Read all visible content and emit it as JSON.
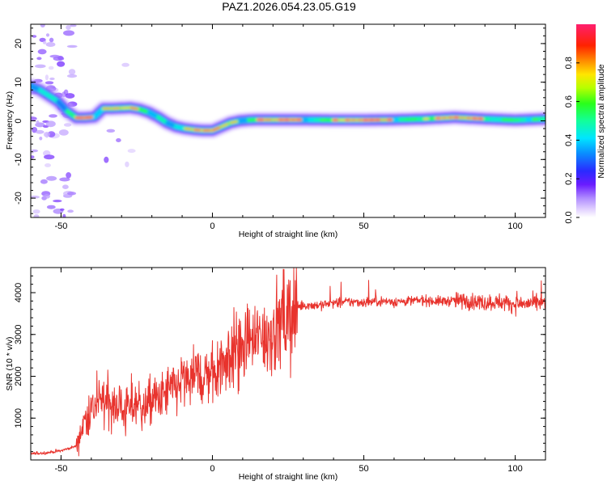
{
  "title": "PAZ1.2026.054.23.05.G19",
  "chart_data": [
    {
      "type": "heatmap",
      "name": "spectrogram",
      "xlabel": "Height of straight line (km)",
      "ylabel": "Frequency (Hz)",
      "xlim": [
        -60,
        110
      ],
      "ylim": [
        -25,
        25
      ],
      "xticks": [
        -50,
        0,
        50,
        100
      ],
      "xtick_labels": [
        "-50",
        "0",
        "50",
        "100"
      ],
      "yticks": [
        -20,
        -10,
        0,
        10,
        20
      ],
      "ytick_labels": [
        "-20",
        "-10",
        "0",
        "10",
        "20"
      ],
      "ridge": {
        "height_km": [
          -60,
          -57,
          -54,
          -51,
          -48,
          -45,
          -42,
          -39,
          -36,
          -33,
          -30,
          -27,
          -24,
          -21,
          -18,
          -15,
          -12,
          -9,
          -6,
          -3,
          0,
          3,
          6,
          9,
          12,
          15,
          20,
          30,
          40,
          50,
          60,
          70,
          80,
          90,
          100,
          110
        ],
        "frequency_hz": [
          9,
          8,
          6.5,
          5,
          2.5,
          0.8,
          0.8,
          1,
          3.2,
          3.2,
          3.3,
          3.4,
          3,
          2.2,
          1,
          -0.5,
          -1.5,
          -2,
          -2.3,
          -2.5,
          -2.5,
          -1.5,
          -0.5,
          0,
          0.2,
          0.3,
          0.3,
          0.3,
          0.2,
          0.2,
          0.3,
          0.5,
          0.9,
          0.5,
          0.2,
          0.5
        ],
        "normalized_amplitude": [
          0.35,
          0.45,
          0.5,
          0.5,
          0.55,
          0.85,
          0.9,
          0.55,
          0.9,
          0.9,
          0.85,
          0.9,
          0.6,
          0.5,
          0.55,
          0.5,
          0.6,
          0.75,
          0.85,
          0.9,
          0.9,
          0.8,
          0.85,
          0.5,
          0.6,
          0.9,
          0.9,
          0.6,
          0.85,
          0.95,
          0.6,
          0.8,
          0.9,
          0.6,
          0.6,
          0.6
        ]
      },
      "colorbar": {
        "label": "Normalized spectral amplitude",
        "range": [
          0,
          1
        ],
        "ticks": [
          0,
          0.2,
          0.4,
          0.6,
          0.8
        ],
        "tick_labels": [
          "0.0",
          "0.2",
          "0.4",
          "0.6",
          "0.8"
        ],
        "colormap": "white-violet-blue-cyan-green-yellow-orange-red-magenta"
      }
    },
    {
      "type": "line",
      "name": "snr",
      "xlabel": "Height of straight line (km)",
      "ylabel": "SNR (10 * v/v)",
      "xlim": [
        -60,
        110
      ],
      "ylim": [
        0,
        4600
      ],
      "xticks": [
        -50,
        0,
        50,
        100
      ],
      "xtick_labels": [
        "-50",
        "0",
        "50",
        "100"
      ],
      "yticks": [
        1000,
        2000,
        3000,
        4000
      ],
      "ytick_labels": [
        "1000",
        "2000",
        "3000",
        "4000"
      ],
      "series": [
        {
          "name": "SNR",
          "color": "#e8332d",
          "x": [
            -60,
            -55,
            -50,
            -45,
            -42,
            -40,
            -37,
            -35,
            -33,
            -30,
            -27,
            -25,
            -22,
            -20,
            -17,
            -15,
            -12,
            -10,
            -7,
            -5,
            -2,
            0,
            3,
            5,
            8,
            10,
            13,
            15,
            18,
            20,
            23,
            25,
            28,
            30,
            35,
            40,
            45,
            50,
            55,
            60,
            65,
            70,
            75,
            80,
            85,
            90,
            95,
            100,
            105,
            110
          ],
          "y": [
            150,
            170,
            220,
            330,
            1000,
            1200,
            1350,
            1500,
            1250,
            1350,
            1200,
            1400,
            1250,
            1450,
            1450,
            1650,
            1700,
            1900,
            1900,
            2000,
            2050,
            2100,
            2300,
            2500,
            2600,
            2700,
            2800,
            2900,
            3000,
            3100,
            3250,
            3400,
            3650,
            3700,
            3700,
            3750,
            3780,
            3770,
            3800,
            3780,
            3800,
            3820,
            3790,
            3810,
            3800,
            3760,
            3780,
            3720,
            3740,
            3750
          ]
        }
      ]
    }
  ]
}
